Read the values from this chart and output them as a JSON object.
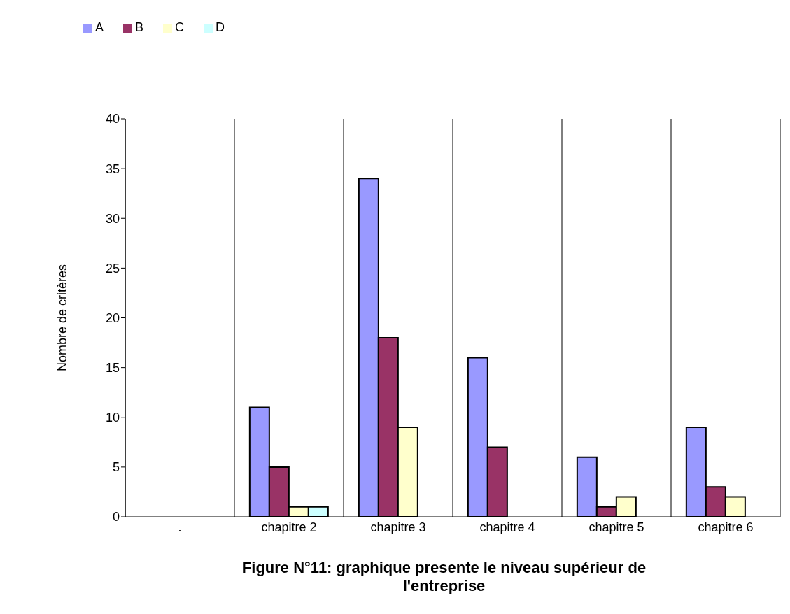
{
  "chart_data": {
    "type": "bar",
    "title": "Figure N°11: graphique presente le niveau supérieur de l'entreprise",
    "ylabel": "Nombre de critères",
    "categories": [
      ".",
      "chapitre 2",
      "chapitre 3",
      "chapitre 4",
      "chapitre 5",
      "chapitre 6"
    ],
    "series": [
      {
        "name": "A",
        "color": "#9999ff",
        "values": [
          null,
          11,
          34,
          16,
          6,
          9
        ]
      },
      {
        "name": "B",
        "color": "#993366",
        "values": [
          null,
          5,
          18,
          7,
          1,
          3
        ]
      },
      {
        "name": "C",
        "color": "#ffffcc",
        "values": [
          null,
          1,
          9,
          null,
          2,
          2
        ]
      },
      {
        "name": "D",
        "color": "#ccffff",
        "values": [
          null,
          1,
          null,
          null,
          null,
          null
        ]
      }
    ],
    "ylim": [
      0,
      40
    ],
    "yticks": [
      0,
      5,
      10,
      15,
      20,
      25,
      30,
      35,
      40
    ],
    "grid": "x",
    "legend": "top left"
  }
}
